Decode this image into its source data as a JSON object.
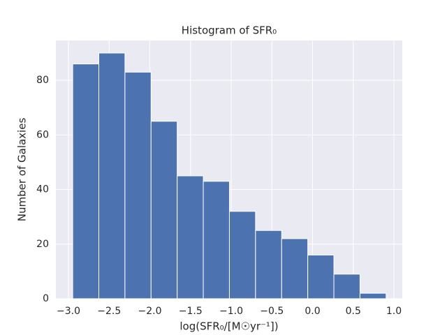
{
  "chart_data": {
    "type": "histogram",
    "title": "Histogram of SFR₀",
    "xlabel": "log(SFR₀/[M☉yr⁻¹])",
    "ylabel": "Number of Galaxies",
    "bins": [
      -2.948,
      -2.627,
      -2.306,
      -1.985,
      -1.664,
      -1.343,
      -1.022,
      -0.701,
      -0.38,
      -0.059,
      0.262,
      0.583,
      0.904
    ],
    "counts": [
      86,
      90,
      83,
      65,
      45,
      43,
      32,
      25,
      22,
      16,
      9,
      2
    ],
    "color": "#4c72b0",
    "xlim": [
      -3.155,
      1.103
    ],
    "ylim": [
      0,
      94.6
    ],
    "xticks": [
      {
        "value": -3.0,
        "label": "−3.0"
      },
      {
        "value": -2.5,
        "label": "−2.5"
      },
      {
        "value": -2.0,
        "label": "−2.0"
      },
      {
        "value": -1.5,
        "label": "−1.5"
      },
      {
        "value": -1.0,
        "label": "−1.0"
      },
      {
        "value": -0.5,
        "label": "−0.5"
      },
      {
        "value": 0.0,
        "label": "0.0"
      },
      {
        "value": 0.5,
        "label": "0.5"
      },
      {
        "value": 1.0,
        "label": "1.0"
      }
    ],
    "yticks": [
      0,
      20,
      40,
      60,
      80
    ],
    "grid": true
  }
}
